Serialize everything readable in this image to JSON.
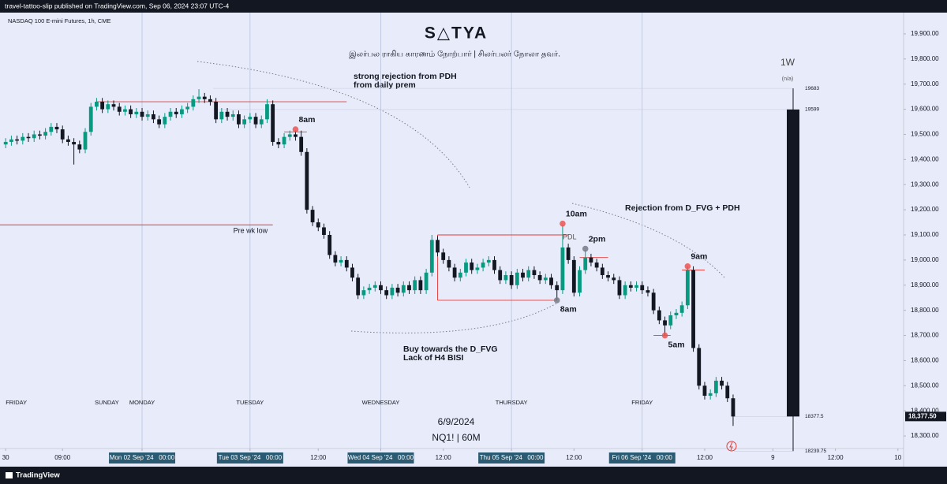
{
  "chart_data": {
    "type": "candlestick",
    "publisher": "travel-tattoo-slip published on TradingView.com, Sep 06, 2024 23:07 UTC-4",
    "symbol": "NASDAQ 100 E-mini Futures, 1h, CME",
    "title": "S△TYA",
    "subtitle": "இலர்பல ராகிய காரணம் நோற்பார் | சிலர்பலர் நோலா தவர்.",
    "footer_date": "6/9/2024",
    "footer_symbol": "NQ1! | 60M",
    "brand": "TradingView",
    "up_color": "#089981",
    "down_color": "#131722",
    "level_color": "#e53935",
    "ylim": [
      18250,
      19950
    ],
    "xlim": [
      -1,
      158
    ],
    "yticks": [
      {
        "value": 18300,
        "label": "18,300.00"
      },
      {
        "value": 18400,
        "label": "18,400.00"
      },
      {
        "value": 18500,
        "label": "18,500.00"
      },
      {
        "value": 18600,
        "label": "18,600.00"
      },
      {
        "value": 18700,
        "label": "18,700.00"
      },
      {
        "value": 18800,
        "label": "18,800.00"
      },
      {
        "value": 18900,
        "label": "18,900.00"
      },
      {
        "value": 19000,
        "label": "19,000.00"
      },
      {
        "value": 19100,
        "label": "19,100.00"
      },
      {
        "value": 19200,
        "label": "19,200.00"
      },
      {
        "value": 19300,
        "label": "19,300.00"
      },
      {
        "value": 19400,
        "label": "19,400.00"
      },
      {
        "value": 19500,
        "label": "19,500.00"
      },
      {
        "value": 19600,
        "label": "19,600.00"
      },
      {
        "value": 19700,
        "label": "19,700.00"
      },
      {
        "value": 19800,
        "label": "19,800.00"
      },
      {
        "value": 19900,
        "label": "19,900.00"
      }
    ],
    "xticks": [
      {
        "value": 0,
        "label": "30"
      },
      {
        "value": 10,
        "label": "09:00"
      },
      {
        "value": 24,
        "label": "Mon 02 Sep '24   00:00"
      },
      {
        "value": 43,
        "label": "Tue 03 Sep '24   00:00"
      },
      {
        "value": 55,
        "label": "12:00"
      },
      {
        "value": 66,
        "label": "Wed 04 Sep '24   00:00"
      },
      {
        "value": 77,
        "label": "12:00"
      },
      {
        "value": 89,
        "label": "Thu 05 Sep '24   00:00"
      },
      {
        "value": 100,
        "label": "12:00"
      },
      {
        "value": 112,
        "label": "Fri 06 Sep '24   00:00"
      },
      {
        "value": 123,
        "label": "12:00"
      },
      {
        "value": 135,
        "label": "9"
      },
      {
        "value": 146,
        "label": "12:00"
      },
      {
        "value": 157,
        "label": "10"
      }
    ],
    "sessions": [
      {
        "value": 0,
        "label": "FRIDAY"
      },
      {
        "value": 17.8,
        "label": "SUNDAY"
      },
      {
        "value": 24,
        "label": "MONDAY"
      },
      {
        "value": 43,
        "label": "TUESDAY"
      },
      {
        "value": 66,
        "label": "WEDNESDAY"
      },
      {
        "value": 89,
        "label": "THURSDAY"
      },
      {
        "value": 112,
        "label": "FRIDAY"
      }
    ],
    "open": [
      19460,
      19470,
      19480,
      19475,
      19490,
      19485,
      19500,
      19495,
      19510,
      19530,
      19520,
      19480,
      19470,
      19460,
      19440,
      19510,
      19610,
      19630,
      19600,
      19620,
      19610,
      19590,
      19600,
      19580,
      19590,
      19570,
      19580,
      19560,
      19540,
      19570,
      19590,
      19580,
      19600,
      19610,
      19640,
      19650,
      19640,
      19630,
      19560,
      19590,
      19570,
      19580,
      19540,
      19560,
      19570,
      19540,
      19560,
      19620,
      19470,
      19460,
      19490,
      19500,
      19490,
      19430,
      19200,
      19150,
      19130,
      19100,
      19020,
      18990,
      19000,
      18970,
      18930,
      18860,
      18880,
      18890,
      18900,
      18880,
      18860,
      18890,
      18870,
      18900,
      18880,
      18920,
      18880,
      18950,
      19080,
      19030,
      19000,
      18970,
      18930,
      18950,
      18990,
      18960,
      18970,
      18990,
      19000,
      18960,
      18920,
      18940,
      18900,
      18950,
      18930,
      18960,
      18940,
      18920,
      18930,
      18900,
      18880,
      19050,
      19000,
      18870,
      18960,
      19010,
      18990,
      18970,
      18940,
      18930,
      18920,
      18860,
      18900,
      18890,
      18900,
      18880,
      18870,
      18800,
      18760,
      18740,
      18780,
      18790,
      18820,
      18960,
      18650,
      18500,
      18460,
      18470,
      18520,
      18500,
      18450
    ],
    "high": [
      19485,
      19495,
      19495,
      19505,
      19505,
      19515,
      19515,
      19525,
      19545,
      19545,
      19535,
      19495,
      19485,
      19475,
      19525,
      19625,
      19645,
      19645,
      19635,
      19635,
      19625,
      19615,
      19615,
      19605,
      19605,
      19595,
      19595,
      19575,
      19585,
      19605,
      19605,
      19615,
      19625,
      19655,
      19680,
      19665,
      19655,
      19645,
      19605,
      19605,
      19595,
      19595,
      19575,
      19585,
      19585,
      19575,
      19640,
      19635,
      19485,
      19505,
      19515,
      19515,
      19515,
      19445,
      19215,
      19165,
      19145,
      19115,
      19035,
      19015,
      19015,
      18985,
      18945,
      18895,
      18905,
      18915,
      18915,
      18895,
      18905,
      18905,
      18915,
      18915,
      18935,
      18935,
      18965,
      19100,
      19095,
      19045,
      19015,
      18985,
      18965,
      19005,
      19005,
      18985,
      19005,
      19015,
      19015,
      18975,
      18955,
      18955,
      18965,
      18965,
      18975,
      18975,
      18955,
      18945,
      18945,
      18915,
      19140,
      19065,
      19015,
      18975,
      19040,
      19025,
      19005,
      18985,
      18955,
      18945,
      18935,
      18915,
      18915,
      18915,
      18915,
      18895,
      18885,
      18815,
      18775,
      18795,
      18805,
      18835,
      18975,
      18975,
      18665,
      18515,
      18485,
      18535,
      18535,
      18515,
      18465
    ],
    "low": [
      19445,
      19455,
      19460,
      19460,
      19470,
      19470,
      19480,
      19480,
      19495,
      19505,
      19465,
      19455,
      19380,
      19425,
      19425,
      19495,
      19595,
      19585,
      19585,
      19595,
      19575,
      19575,
      19565,
      19565,
      19555,
      19555,
      19545,
      19525,
      19525,
      19555,
      19565,
      19565,
      19585,
      19595,
      19625,
      19625,
      19615,
      19545,
      19545,
      19555,
      19555,
      19525,
      19525,
      19545,
      19525,
      19525,
      19545,
      19455,
      19445,
      19445,
      19475,
      19475,
      19415,
      19185,
      19135,
      19115,
      19085,
      19005,
      18975,
      18975,
      18955,
      18915,
      18845,
      18845,
      18865,
      18875,
      18865,
      18845,
      18845,
      18855,
      18855,
      18865,
      18865,
      18865,
      18865,
      18935,
      19015,
      18985,
      18955,
      18915,
      18915,
      18935,
      18945,
      18945,
      18955,
      18975,
      18945,
      18905,
      18905,
      18885,
      18885,
      18915,
      18915,
      18925,
      18905,
      18905,
      18885,
      18840,
      18865,
      18985,
      18855,
      18855,
      18945,
      18975,
      18955,
      18925,
      18915,
      18905,
      18845,
      18845,
      18875,
      18875,
      18865,
      18855,
      18785,
      18745,
      18700,
      18725,
      18765,
      18775,
      18805,
      18635,
      18485,
      18445,
      18445,
      18455,
      18485,
      18435,
      18340
    ],
    "close": [
      19470,
      19480,
      19475,
      19490,
      19485,
      19500,
      19495,
      19510,
      19530,
      19520,
      19480,
      19470,
      19460,
      19440,
      19510,
      19610,
      19630,
      19600,
      19620,
      19610,
      19590,
      19600,
      19580,
      19590,
      19570,
      19580,
      19560,
      19540,
      19570,
      19590,
      19580,
      19600,
      19610,
      19640,
      19650,
      19640,
      19630,
      19560,
      19590,
      19570,
      19580,
      19540,
      19560,
      19570,
      19540,
      19560,
      19620,
      19470,
      19460,
      19490,
      19500,
      19490,
      19430,
      19200,
      19150,
      19130,
      19100,
      19020,
      18990,
      19000,
      18970,
      18930,
      18860,
      18880,
      18890,
      18900,
      18880,
      18860,
      18890,
      18870,
      18900,
      18880,
      18920,
      18880,
      18950,
      19080,
      19030,
      19000,
      18970,
      18930,
      18950,
      18990,
      18960,
      18970,
      18990,
      19000,
      18960,
      18920,
      18940,
      18900,
      18950,
      18930,
      18960,
      18940,
      18920,
      18930,
      18900,
      18880,
      19050,
      19000,
      18870,
      18960,
      19010,
      18990,
      18970,
      18940,
      18930,
      18920,
      18860,
      18900,
      18890,
      18900,
      18880,
      18870,
      18800,
      18760,
      18740,
      18780,
      18790,
      18820,
      18960,
      18650,
      18500,
      18460,
      18470,
      18520,
      18500,
      18450,
      18377.5
    ],
    "last_price": {
      "value": 18377.5,
      "label": "18,377.50"
    },
    "weekly": {
      "label": "1W",
      "status": "(n/a)",
      "open": 19599,
      "high": 19683,
      "low": 18239.75,
      "close": 18377.5
    },
    "levels": [
      {
        "price": 19630,
        "from": 16,
        "to": 60
      },
      {
        "price": 19140,
        "from": -1,
        "to": 47,
        "label": "Pre wk low"
      },
      {
        "price": 19510,
        "from": 49,
        "to": 53
      },
      {
        "price": 19100,
        "from": 76,
        "to": 99
      },
      {
        "price": 18840,
        "from": 76,
        "to": 97
      },
      {
        "price": 19010,
        "from": 101,
        "to": 106
      },
      {
        "price": 18960,
        "from": 119,
        "to": 123
      },
      {
        "price": 18700,
        "from": 114,
        "to": 117
      }
    ],
    "markers": [
      {
        "index": 51,
        "price": 19520,
        "color": "#ef5350",
        "label": "8am"
      },
      {
        "index": 98,
        "price": 19145,
        "color": "#ef5350",
        "label": "10am"
      },
      {
        "index": 97,
        "price": 18840,
        "color": "#787b86",
        "label": "8am"
      },
      {
        "index": 102,
        "price": 19045,
        "color": "#787b86",
        "label": "2pm"
      },
      {
        "index": 120,
        "price": 18975,
        "color": "#ef5350",
        "label": "9am"
      },
      {
        "index": 116,
        "price": 18700,
        "color": "#ef5350",
        "label": "5am"
      }
    ],
    "annotations": [
      "strong rejection from PDH",
      "from daily prem",
      "PDL",
      "Rejection from D_FVG + PDH",
      "Buy towards the D_FVG",
      "Lack of H4 BISI"
    ]
  }
}
